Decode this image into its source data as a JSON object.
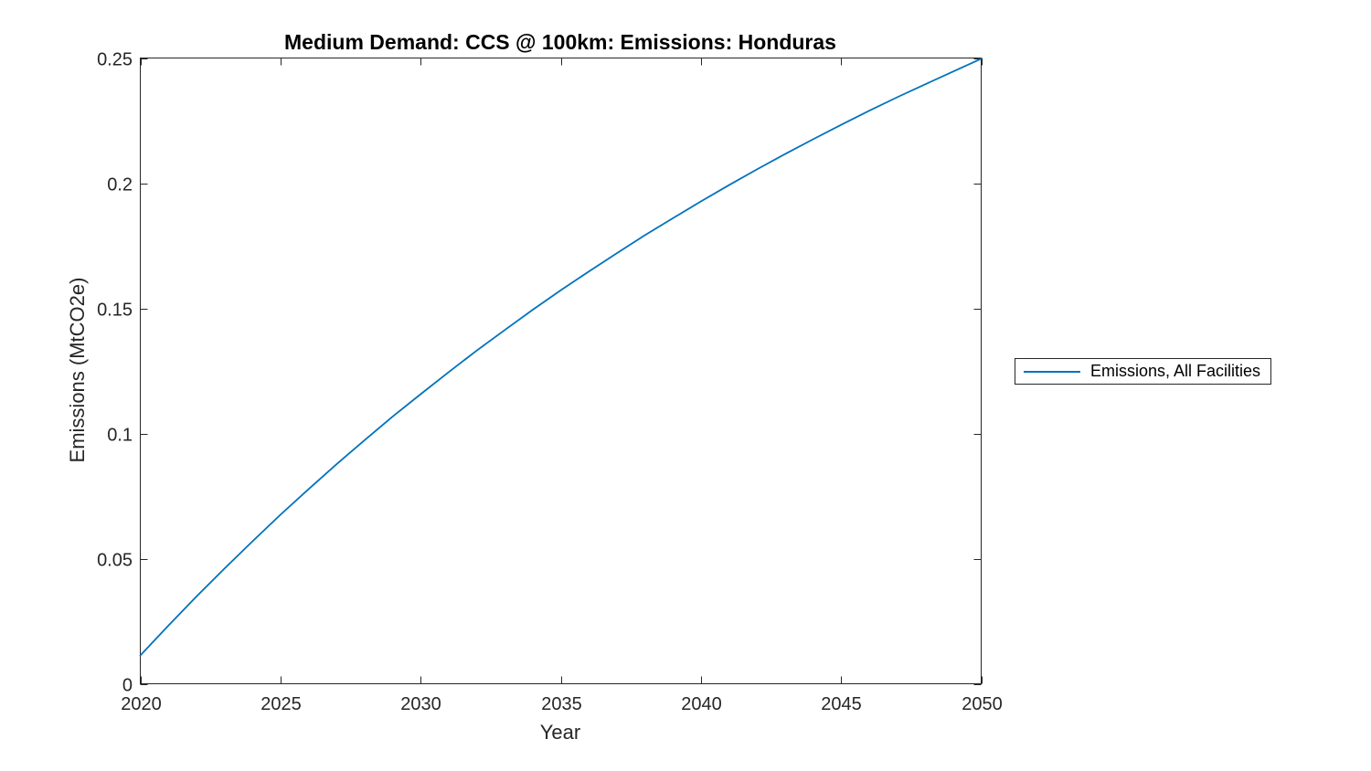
{
  "figure": {
    "background": "#ffffff"
  },
  "chart_data": {
    "type": "line",
    "title": "Medium Demand: CCS @ 100km: Emissions: Honduras",
    "xlabel": "Year",
    "ylabel": "Emissions (MtCO2e)",
    "xlim": [
      2020,
      2050
    ],
    "ylim": [
      0,
      0.25
    ],
    "xticks": [
      2020,
      2025,
      2030,
      2035,
      2040,
      2045,
      2050
    ],
    "xtick_labels": [
      "2020",
      "2025",
      "2030",
      "2035",
      "2040",
      "2045",
      "2050"
    ],
    "yticks": [
      0,
      0.05,
      0.1,
      0.15,
      0.2,
      0.25
    ],
    "ytick_labels": [
      "0",
      "0.05",
      "0.1",
      "0.15",
      "0.2",
      "0.25"
    ],
    "grid": false,
    "box": true,
    "tick_direction": "in",
    "legend_position": "right-outside",
    "series": [
      {
        "name": "Emissions, All Facilities",
        "color": "#0072BD",
        "x": [
          2020,
          2021,
          2022,
          2023,
          2024,
          2025,
          2026,
          2027,
          2028,
          2029,
          2030,
          2031,
          2032,
          2033,
          2034,
          2035,
          2036,
          2037,
          2038,
          2039,
          2040,
          2041,
          2042,
          2043,
          2044,
          2045,
          2046,
          2047,
          2048,
          2049,
          2050
        ],
        "values": [
          0.0113,
          0.0232,
          0.0348,
          0.046,
          0.0569,
          0.0675,
          0.0777,
          0.0877,
          0.0973,
          0.1067,
          0.1157,
          0.1245,
          0.1331,
          0.1413,
          0.1494,
          0.1572,
          0.1647,
          0.172,
          0.1792,
          0.186,
          0.1927,
          0.1992,
          0.2055,
          0.2116,
          0.2175,
          0.2233,
          0.2289,
          0.2343,
          0.2395,
          0.2446,
          0.2497
        ]
      }
    ],
    "axis_color": "#262626",
    "tick_label_color": "#262626"
  },
  "legend": {
    "entries": [
      "Emissions, All Facilities"
    ]
  }
}
